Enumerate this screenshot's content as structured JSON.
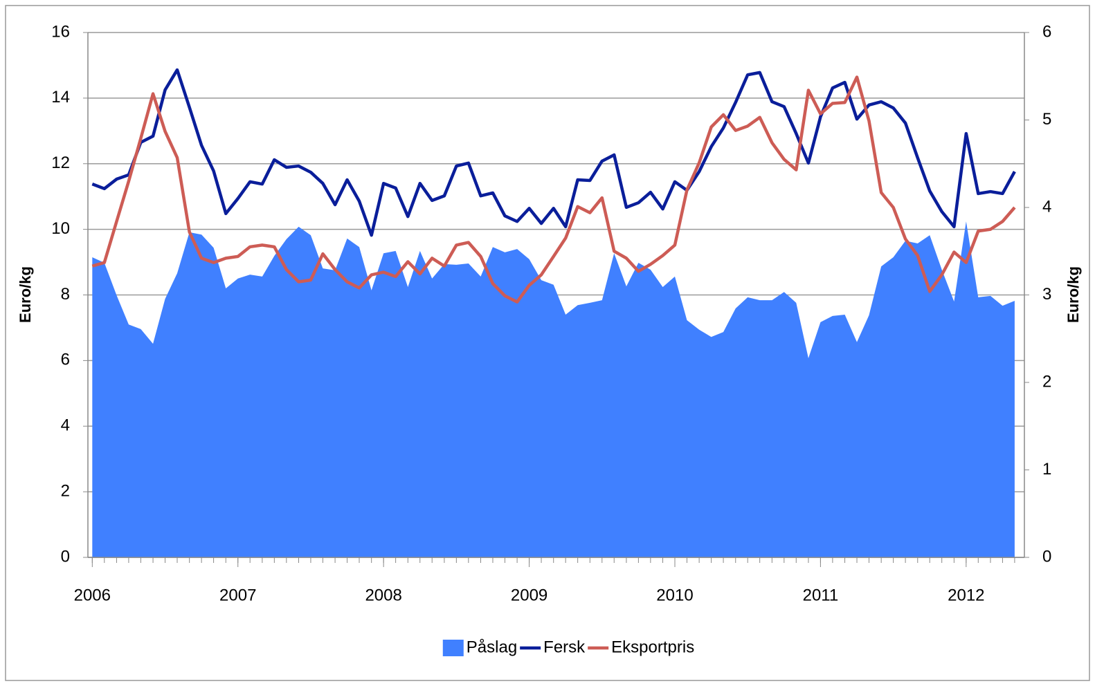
{
  "chart_data": {
    "type": "line",
    "y_label": "Euro/kg",
    "y2_label": "Euro/kg",
    "xlim": [
      2005.97,
      2012.4
    ],
    "xticks": [
      2006,
      2007,
      2008,
      2009,
      2010,
      2011,
      2012
    ],
    "ylim": [
      0,
      16
    ],
    "yticks": [
      0,
      2,
      4,
      6,
      8,
      10,
      12,
      14,
      16
    ],
    "y2lim": [
      0,
      6
    ],
    "y2ticks": [
      0,
      1,
      2,
      3,
      4,
      5,
      6
    ],
    "grid": true,
    "legend": "bottom",
    "x": [
      2006,
      2006.083,
      2006.167,
      2006.25,
      2006.333,
      2006.417,
      2006.5,
      2006.583,
      2006.667,
      2006.75,
      2006.833,
      2006.917,
      2007,
      2007.083,
      2007.167,
      2007.25,
      2007.333,
      2007.417,
      2007.5,
      2007.583,
      2007.667,
      2007.75,
      2007.833,
      2007.917,
      2008,
      2008.083,
      2008.167,
      2008.25,
      2008.333,
      2008.417,
      2008.5,
      2008.583,
      2008.667,
      2008.75,
      2008.833,
      2008.917,
      2009,
      2009.083,
      2009.167,
      2009.25,
      2009.333,
      2009.417,
      2009.5,
      2009.583,
      2009.667,
      2009.75,
      2009.833,
      2009.917,
      2010,
      2010.083,
      2010.167,
      2010.25,
      2010.333,
      2010.417,
      2010.5,
      2010.583,
      2010.667,
      2010.75,
      2010.833,
      2010.917,
      2011,
      2011.083,
      2011.167,
      2011.25,
      2011.333,
      2011.417,
      2011.5,
      2011.583,
      2011.667,
      2011.75,
      2011.833,
      2011.917,
      2012,
      2012.083,
      2012.167,
      2012.25,
      2012.333
    ],
    "series": [
      {
        "name": "Påslag",
        "type": "area",
        "color": "#4080ff",
        "values": [
          9.15,
          8.98,
          7.99,
          7.1,
          6.96,
          6.51,
          7.88,
          8.66,
          9.91,
          9.84,
          9.44,
          8.2,
          8.5,
          8.62,
          8.56,
          9.19,
          9.7,
          10.08,
          9.82,
          8.81,
          8.75,
          9.72,
          9.46,
          8.14,
          9.27,
          9.34,
          8.24,
          9.34,
          8.5,
          8.94,
          8.92,
          8.96,
          8.56,
          9.46,
          9.3,
          9.4,
          9.09,
          8.45,
          8.31,
          7.4,
          7.69,
          7.76,
          7.84,
          9.27,
          8.26,
          8.98,
          8.77,
          8.24,
          8.56,
          7.23,
          6.94,
          6.72,
          6.87,
          7.59,
          7.93,
          7.84,
          7.84,
          8.09,
          7.76,
          6.07,
          7.17,
          7.36,
          7.4,
          6.56,
          7.38,
          8.87,
          9.15,
          9.65,
          9.57,
          9.82,
          8.77,
          7.8,
          10.24,
          7.93,
          7.97,
          7.67,
          7.82
        ]
      },
      {
        "name": "Fersk",
        "type": "line",
        "color": "#0a1e9a",
        "values": [
          11.38,
          11.24,
          11.53,
          11.66,
          12.65,
          12.84,
          14.25,
          14.86,
          13.72,
          12.56,
          11.78,
          10.48,
          10.94,
          11.45,
          11.38,
          12.12,
          11.89,
          11.93,
          11.74,
          11.4,
          10.75,
          11.51,
          10.86,
          9.82,
          11.4,
          11.26,
          10.39,
          11.4,
          10.88,
          11.02,
          11.93,
          12.02,
          11.02,
          11.11,
          10.41,
          10.24,
          10.64,
          10.18,
          10.64,
          10.08,
          11.51,
          11.49,
          12.08,
          12.27,
          10.67,
          10.81,
          11.13,
          10.62,
          11.45,
          11.19,
          11.76,
          12.52,
          13.09,
          13.87,
          14.71,
          14.78,
          13.89,
          13.74,
          12.92,
          12.02,
          13.43,
          14.31,
          14.48,
          13.36,
          13.79,
          13.89,
          13.7,
          13.24,
          12.18,
          11.17,
          10.54,
          10.08,
          12.92,
          11.09,
          11.15,
          11.09,
          11.76
        ]
      },
      {
        "name": "Eksportpris",
        "type": "line",
        "axis": "y2",
        "color": "#cd5c55",
        "values": [
          3.33,
          3.37,
          3.84,
          4.3,
          4.79,
          5.3,
          4.87,
          4.57,
          3.72,
          3.42,
          3.37,
          3.42,
          3.44,
          3.55,
          3.57,
          3.55,
          3.29,
          3.15,
          3.17,
          3.47,
          3.29,
          3.15,
          3.08,
          3.23,
          3.26,
          3.21,
          3.38,
          3.24,
          3.42,
          3.33,
          3.57,
          3.6,
          3.44,
          3.13,
          2.99,
          2.92,
          3.11,
          3.23,
          3.44,
          3.65,
          4.01,
          3.94,
          4.11,
          3.5,
          3.42,
          3.27,
          3.35,
          3.45,
          3.57,
          4.2,
          4.51,
          4.92,
          5.06,
          4.88,
          4.93,
          5.03,
          4.74,
          4.55,
          4.43,
          5.34,
          5.07,
          5.19,
          5.2,
          5.49,
          4.99,
          4.17,
          4,
          3.64,
          3.45,
          3.04,
          3.23,
          3.49,
          3.37,
          3.73,
          3.75,
          3.84,
          4
        ]
      }
    ]
  }
}
